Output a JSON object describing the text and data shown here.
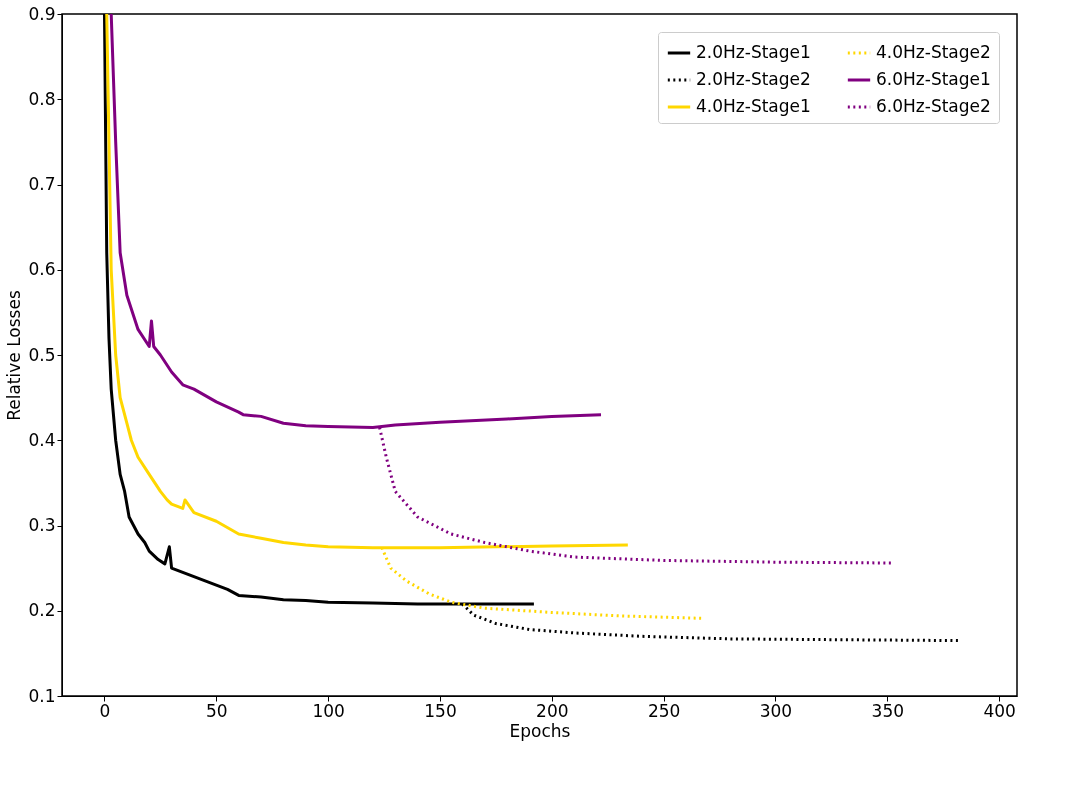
{
  "chart_data": {
    "type": "line",
    "xlabel": "Epochs",
    "ylabel": "Relative Losses",
    "xlim": [
      -19,
      408
    ],
    "ylim": [
      0.1,
      0.9
    ],
    "xticks": [
      0,
      50,
      100,
      150,
      200,
      250,
      300,
      350,
      400
    ],
    "yticks": [
      0.1,
      0.2,
      0.3,
      0.4,
      0.5,
      0.6,
      0.7,
      0.8,
      0.9
    ],
    "grid": false,
    "legend": "top right",
    "marker": "none",
    "series": [
      {
        "name": "2.0Hz-Stage1",
        "color": "#000000",
        "line_style": "solid",
        "x": [
          0,
          1,
          2,
          3,
          5,
          7,
          9,
          11,
          13,
          15,
          18,
          20,
          24,
          27,
          29,
          30,
          35,
          40,
          45,
          50,
          55,
          60,
          70,
          80,
          90,
          100,
          120,
          140,
          160,
          192
        ],
        "values": [
          0.9,
          0.62,
          0.52,
          0.46,
          0.4,
          0.36,
          0.34,
          0.31,
          0.3,
          0.29,
          0.28,
          0.27,
          0.26,
          0.255,
          0.275,
          0.25,
          0.245,
          0.24,
          0.235,
          0.23,
          0.225,
          0.218,
          0.216,
          0.213,
          0.212,
          0.21,
          0.209,
          0.208,
          0.208,
          0.208
        ]
      },
      {
        "name": "2.0Hz-Stage2",
        "color": "#000000",
        "line_style": "dotted",
        "x": [
          160,
          165,
          175,
          190,
          210,
          240,
          280,
          330,
          382
        ],
        "values": [
          0.208,
          0.195,
          0.185,
          0.178,
          0.174,
          0.17,
          0.167,
          0.166,
          0.165
        ]
      },
      {
        "name": "4.0Hz-Stage1",
        "color": "#ffd700",
        "line_style": "solid",
        "x": [
          1,
          3,
          5,
          7,
          10,
          12,
          15,
          20,
          25,
          28,
          30,
          35,
          36,
          40,
          50,
          60,
          70,
          80,
          90,
          100,
          120,
          150,
          200,
          234
        ],
        "values": [
          0.9,
          0.6,
          0.5,
          0.45,
          0.42,
          0.4,
          0.38,
          0.36,
          0.34,
          0.33,
          0.325,
          0.32,
          0.33,
          0.315,
          0.305,
          0.29,
          0.285,
          0.28,
          0.277,
          0.275,
          0.274,
          0.274,
          0.276,
          0.277
        ]
      },
      {
        "name": "4.0Hz-Stage2",
        "color": "#ffd700",
        "line_style": "dotted",
        "x": [
          124,
          128,
          135,
          145,
          155,
          170,
          200,
          230,
          268
        ],
        "values": [
          0.274,
          0.25,
          0.235,
          0.22,
          0.21,
          0.203,
          0.198,
          0.194,
          0.191
        ]
      },
      {
        "name": "6.0Hz-Stage1",
        "color": "#800080",
        "line_style": "solid",
        "x": [
          3,
          5,
          7,
          10,
          15,
          20,
          21,
          22,
          25,
          30,
          35,
          40,
          50,
          60,
          62,
          70,
          80,
          90,
          100,
          120,
          130,
          150,
          180,
          200,
          222
        ],
        "values": [
          0.9,
          0.75,
          0.62,
          0.57,
          0.53,
          0.51,
          0.54,
          0.51,
          0.5,
          0.48,
          0.465,
          0.46,
          0.445,
          0.433,
          0.43,
          0.428,
          0.42,
          0.417,
          0.416,
          0.415,
          0.418,
          0.421,
          0.425,
          0.428,
          0.43
        ]
      },
      {
        "name": "6.0Hz-Stage2",
        "color": "#800080",
        "line_style": "dotted",
        "x": [
          123,
          126,
          130,
          140,
          155,
          170,
          190,
          210,
          250,
          300,
          352
        ],
        "values": [
          0.415,
          0.38,
          0.34,
          0.31,
          0.29,
          0.28,
          0.27,
          0.263,
          0.259,
          0.257,
          0.256
        ]
      }
    ]
  }
}
